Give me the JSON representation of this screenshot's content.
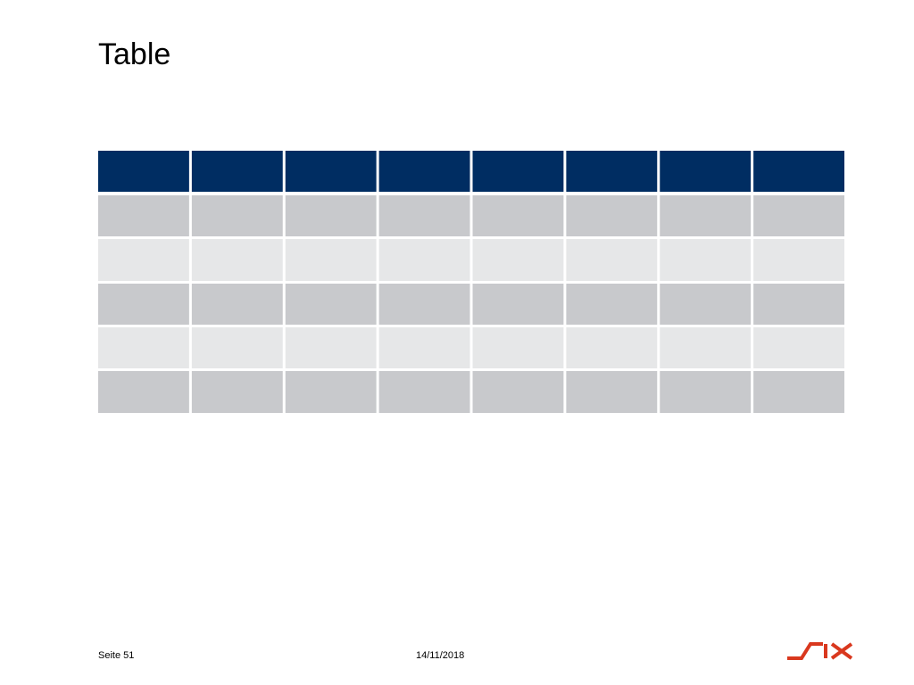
{
  "header": {
    "title": "Table"
  },
  "footer": {
    "page": "Seite 51",
    "date": "14/11/2018"
  }
}
